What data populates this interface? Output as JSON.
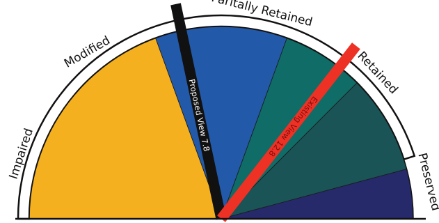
{
  "chart_data": {
    "type": "gauge",
    "title": "",
    "categories": [
      {
        "label": "Impaired",
        "from": 0,
        "to": 7,
        "color": "#f4b01e"
      },
      {
        "label": "Modified",
        "from": 7,
        "to": 11,
        "color": "#2359a9"
      },
      {
        "label": "Paritally Retained",
        "from": 11,
        "to": 13.5,
        "color": "#0f6c66"
      },
      {
        "label": "Retained",
        "from": 13.5,
        "to": 16.5,
        "color": "#1a5456"
      },
      {
        "label": "Preserved",
        "from": 16.5,
        "to": 18,
        "color": "#26296a"
      }
    ],
    "needles": [
      {
        "label": "Proposed View 7.8",
        "value": 7.8,
        "color": "#111111",
        "text_color": "#ffffff"
      },
      {
        "label": "Existing View 12.8",
        "value": 12.8,
        "color": "#ee3125",
        "text_color": "#7a0f0f"
      }
    ],
    "range": [
      0,
      18
    ]
  }
}
